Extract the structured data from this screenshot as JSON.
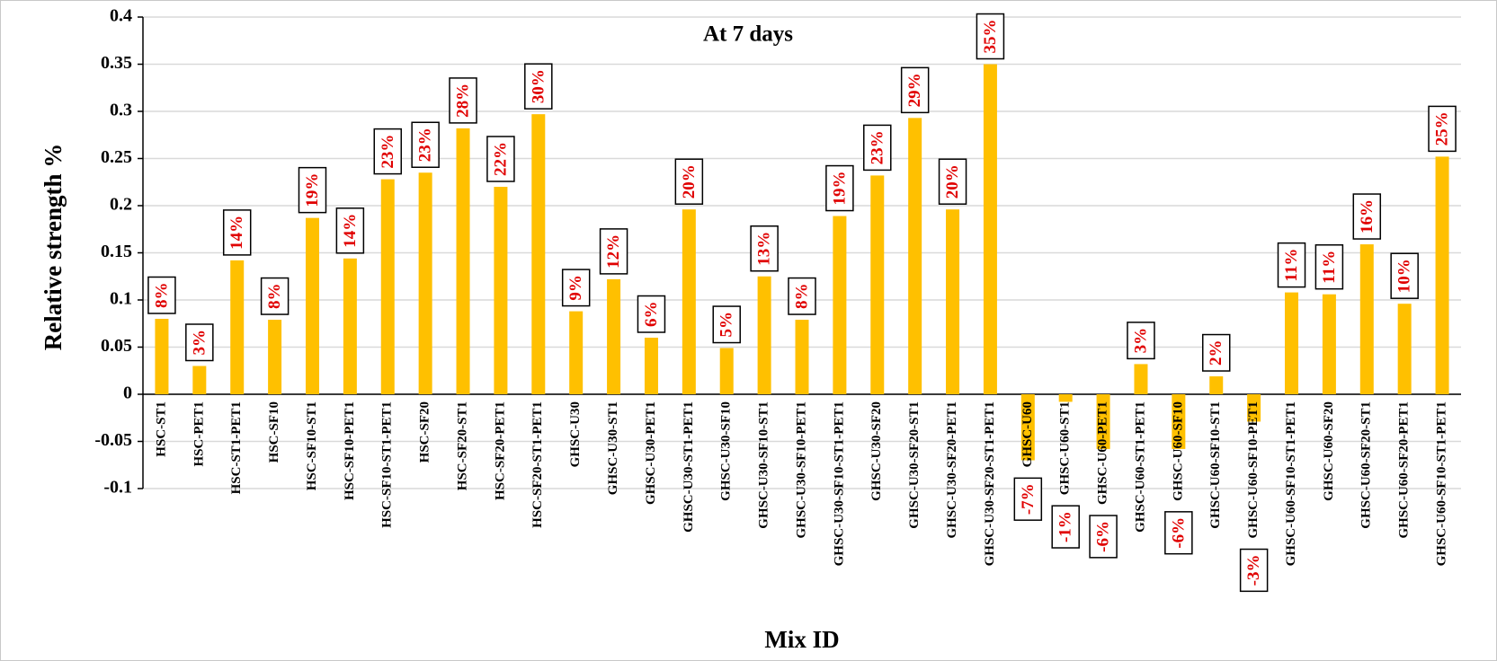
{
  "chart_data": {
    "type": "bar",
    "title": "At 7 days",
    "ylabel": "Relative strength  %",
    "xlabel": "Mix ID",
    "categories": [
      "HSC-ST1",
      "HSC-PET1",
      "HSC-ST1-PET1",
      "HSC-SF10",
      "HSC-SF10-ST1",
      "HSC-SF10-PET1",
      "HSC-SF10-ST1-PET1",
      "HSC-SF20",
      "HSC-SF20-ST1",
      "HSC-SF20-PET1",
      "HSC-SF20-ST1-PET1",
      "GHSC-U30",
      "GHSC-U30-ST1",
      "GHSC-U30-PET1",
      "GHSC-U30-ST1-PET1",
      "GHSC-U30-SF10",
      "GHSC-U30-SF10-ST1",
      "GHSC-U30-SF10-PET1",
      "GHSC-U30-SF10-ST1-PET1",
      "GHSC-U30-SF20",
      "GHSC-U30-SF20-ST1",
      "GHSC-U30-SF20-PET1",
      "GHSC-U30-SF20-ST1-PET1",
      "GHSC-U60",
      "GHSC-U60-ST1",
      "GHSC-U60-PET1",
      "GHSC-U60-ST1-PET1",
      "GHSC-U60-SF10",
      "GHSC-U60-SF10-ST1",
      "GHSC-U60-SF10-PET1",
      "GHSC-U60-SF10-ST1-PET1",
      "GHSC-U60-SF20",
      "GHSC-U60-SF20-ST1",
      "GHSC-U60-SF20-PET1",
      "GHSC-U60-SF10-ST1-PET1"
    ],
    "values": [
      0.08,
      0.03,
      0.142,
      0.079,
      0.187,
      0.144,
      0.228,
      0.235,
      0.282,
      0.22,
      0.297,
      0.088,
      0.122,
      0.06,
      0.196,
      0.049,
      0.125,
      0.079,
      0.189,
      0.232,
      0.293,
      0.196,
      0.35,
      -0.07,
      -0.008,
      -0.058,
      0.032,
      -0.058,
      0.019,
      -0.029,
      0.108,
      0.106,
      0.159,
      0.096,
      0.252
    ],
    "value_labels": [
      "8%",
      "3%",
      "14%",
      "8%",
      "19%",
      "14%",
      "23%",
      "23%",
      "28%",
      "22%",
      "30%",
      "9%",
      "12%",
      "6%",
      "20%",
      "5%",
      "13%",
      "8%",
      "19%",
      "23%",
      "29%",
      "20%",
      "35%",
      "-7%",
      "-1%",
      "-6%",
      "3%",
      "-6%",
      "2%",
      "-3%",
      "11%",
      "11%",
      "16%",
      "10%",
      "25%"
    ],
    "color": "#ffc000",
    "label_color": "#e00000",
    "ylim": [
      -0.1,
      0.4
    ],
    "yticks": [
      -0.1,
      -0.05,
      0,
      0.05,
      0.1,
      0.15,
      0.2,
      0.25,
      0.3,
      0.35,
      0.4
    ],
    "grid": true
  }
}
